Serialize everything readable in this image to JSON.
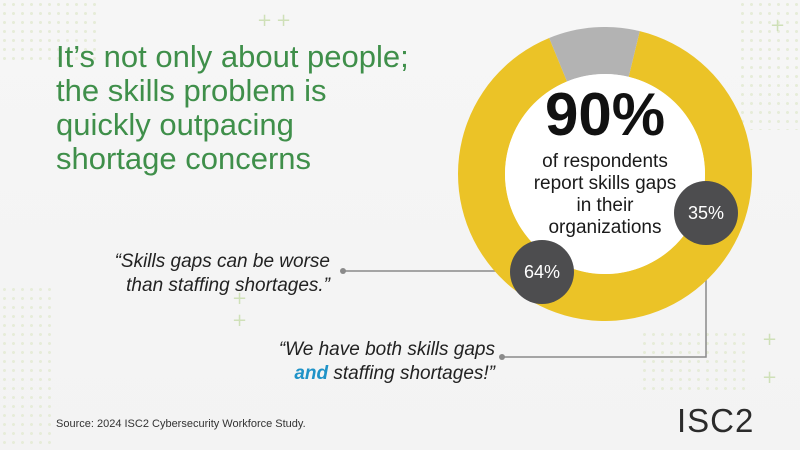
{
  "headline": [
    "It’s not only about people;",
    "the skills problem is",
    "quickly outpacing",
    "shortage concerns"
  ],
  "big_number": "90%",
  "big_description": [
    "of respondents",
    "report skills gaps",
    "in their",
    "organizations"
  ],
  "quotes": {
    "skills_gaps": [
      "“Skills gaps can be worse",
      "than staffing shortages.”"
    ],
    "both": {
      "line1": "“We have both skills gaps",
      "line2_accent": "and",
      "line2_rest": " staffing shortages!”"
    }
  },
  "source": "Source: 2024 ISC2 Cybersecurity Workforce Study.",
  "logo": "ISC2",
  "colors": {
    "headline": "#3f8f4a",
    "donut_main": "#ebc327",
    "donut_rest": "#b3b3b3",
    "badge": "#4d4d4f",
    "accent": "#1f93c8",
    "connector": "#8a8a8a"
  },
  "chart_data": {
    "type": "pie",
    "variant": "donut",
    "slices": [
      {
        "value": 90,
        "color": "#ebc327"
      },
      {
        "value": 10,
        "color": "#b3b3b3"
      }
    ],
    "callouts": [
      {
        "label": "64%",
        "value": 64
      },
      {
        "label": "35%",
        "value": 35
      }
    ]
  }
}
